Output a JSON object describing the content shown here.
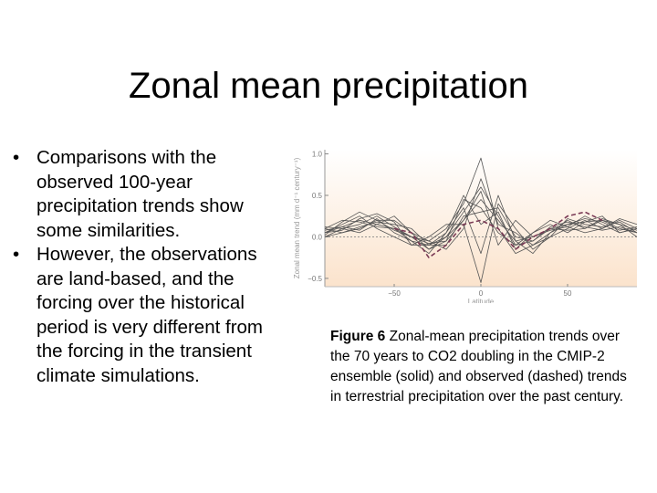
{
  "slide": {
    "title": "Zonal mean precipitation",
    "bullets": [
      "Comparisons with the observed 100-year precipitation trends show some similarities.",
      "However, the observations are land-based, and the forcing over the historical period is very different from the forcing in the transient climate simulations."
    ],
    "caption": {
      "label": "Figure 6",
      "text": "Zonal-mean precipitation trends over the 70 years to CO2 doubling in the CMIP-2 ensemble (solid) and observed (dashed) trends in terrestrial precipitation over the past century."
    }
  },
  "chart_data": {
    "type": "line",
    "xlabel": "Latitude",
    "ylabel": "Zonal mean trend (mm d⁻¹ century⁻¹)",
    "xlim": [
      -90,
      90
    ],
    "ylim": [
      -0.6,
      1.05
    ],
    "xticks": [
      -50,
      0,
      50
    ],
    "yticks": [
      -0.5,
      0.0,
      0.5,
      1.0
    ],
    "ytick_labels": [
      "−0.5",
      "0.0",
      "0.5",
      "1.0"
    ],
    "xtick_labels": [
      "−50",
      "0",
      "50"
    ],
    "grid": false,
    "zero_line": true,
    "colors": {
      "model": "#555555",
      "observed": "#7a3a55",
      "background_top": "#ffffff",
      "background_bottom": "#fbe3cc"
    },
    "x": [
      -90,
      -80,
      -70,
      -60,
      -50,
      -40,
      -30,
      -20,
      -10,
      0,
      10,
      20,
      30,
      40,
      50,
      60,
      70,
      80,
      90
    ],
    "series": [
      {
        "style": "solid",
        "values": [
          0.05,
          0.12,
          0.2,
          0.15,
          0.1,
          -0.05,
          -0.1,
          0.0,
          0.3,
          0.6,
          0.25,
          -0.1,
          -0.05,
          0.1,
          0.15,
          0.18,
          0.2,
          0.1,
          0.05
        ]
      },
      {
        "style": "solid",
        "values": [
          0.0,
          0.1,
          0.15,
          0.25,
          0.12,
          0.0,
          -0.15,
          -0.05,
          0.2,
          0.45,
          0.2,
          -0.05,
          0.0,
          0.08,
          0.12,
          0.25,
          0.15,
          0.05,
          0.1
        ]
      },
      {
        "style": "solid",
        "values": [
          0.1,
          0.05,
          0.1,
          0.2,
          0.2,
          0.05,
          -0.05,
          0.1,
          0.4,
          0.95,
          0.1,
          -0.2,
          -0.1,
          0.05,
          0.2,
          0.1,
          0.22,
          0.15,
          0.0
        ]
      },
      {
        "style": "solid",
        "values": [
          0.05,
          0.15,
          0.25,
          0.1,
          0.0,
          -0.1,
          0.0,
          0.15,
          0.15,
          -0.55,
          0.4,
          0.1,
          -0.15,
          0.0,
          0.1,
          0.2,
          0.1,
          0.2,
          0.1
        ]
      },
      {
        "style": "solid",
        "values": [
          0.0,
          0.05,
          0.12,
          0.18,
          0.15,
          0.1,
          -0.1,
          -0.1,
          0.25,
          0.3,
          0.35,
          0.0,
          -0.05,
          0.12,
          0.18,
          0.12,
          0.08,
          0.12,
          0.05
        ]
      },
      {
        "style": "solid",
        "values": [
          0.08,
          0.12,
          0.08,
          0.22,
          0.05,
          -0.05,
          -0.2,
          0.05,
          0.5,
          0.15,
          0.3,
          -0.15,
          0.05,
          0.15,
          0.05,
          0.18,
          0.25,
          0.05,
          0.1
        ]
      },
      {
        "style": "solid",
        "values": [
          0.1,
          0.2,
          0.18,
          0.12,
          0.1,
          0.0,
          -0.05,
          -0.15,
          0.1,
          0.7,
          0.15,
          0.05,
          -0.1,
          0.0,
          0.22,
          0.15,
          0.12,
          0.18,
          0.05
        ]
      },
      {
        "style": "solid",
        "values": [
          0.05,
          0.08,
          0.22,
          0.28,
          0.18,
          -0.1,
          -0.1,
          0.05,
          0.35,
          -0.2,
          0.5,
          -0.05,
          -0.2,
          0.05,
          0.15,
          0.22,
          0.18,
          0.08,
          0.12
        ]
      },
      {
        "style": "solid",
        "values": [
          0.12,
          0.1,
          0.05,
          0.15,
          0.25,
          0.05,
          -0.15,
          0.0,
          0.2,
          0.55,
          -0.1,
          0.2,
          0.0,
          0.1,
          0.08,
          0.1,
          0.2,
          0.15,
          0.08
        ]
      },
      {
        "style": "solid",
        "values": [
          0.02,
          0.18,
          0.3,
          0.2,
          0.08,
          0.0,
          -0.08,
          -0.05,
          0.45,
          0.35,
          0.05,
          -0.1,
          0.05,
          0.2,
          0.12,
          0.05,
          0.1,
          0.22,
          0.15
        ]
      },
      {
        "style": "dashed",
        "values": [
          null,
          null,
          null,
          null,
          0.1,
          0.05,
          -0.25,
          -0.1,
          0.15,
          0.2,
          0.1,
          -0.15,
          0.0,
          0.1,
          0.25,
          0.3,
          0.2,
          null,
          null
        ]
      }
    ]
  }
}
